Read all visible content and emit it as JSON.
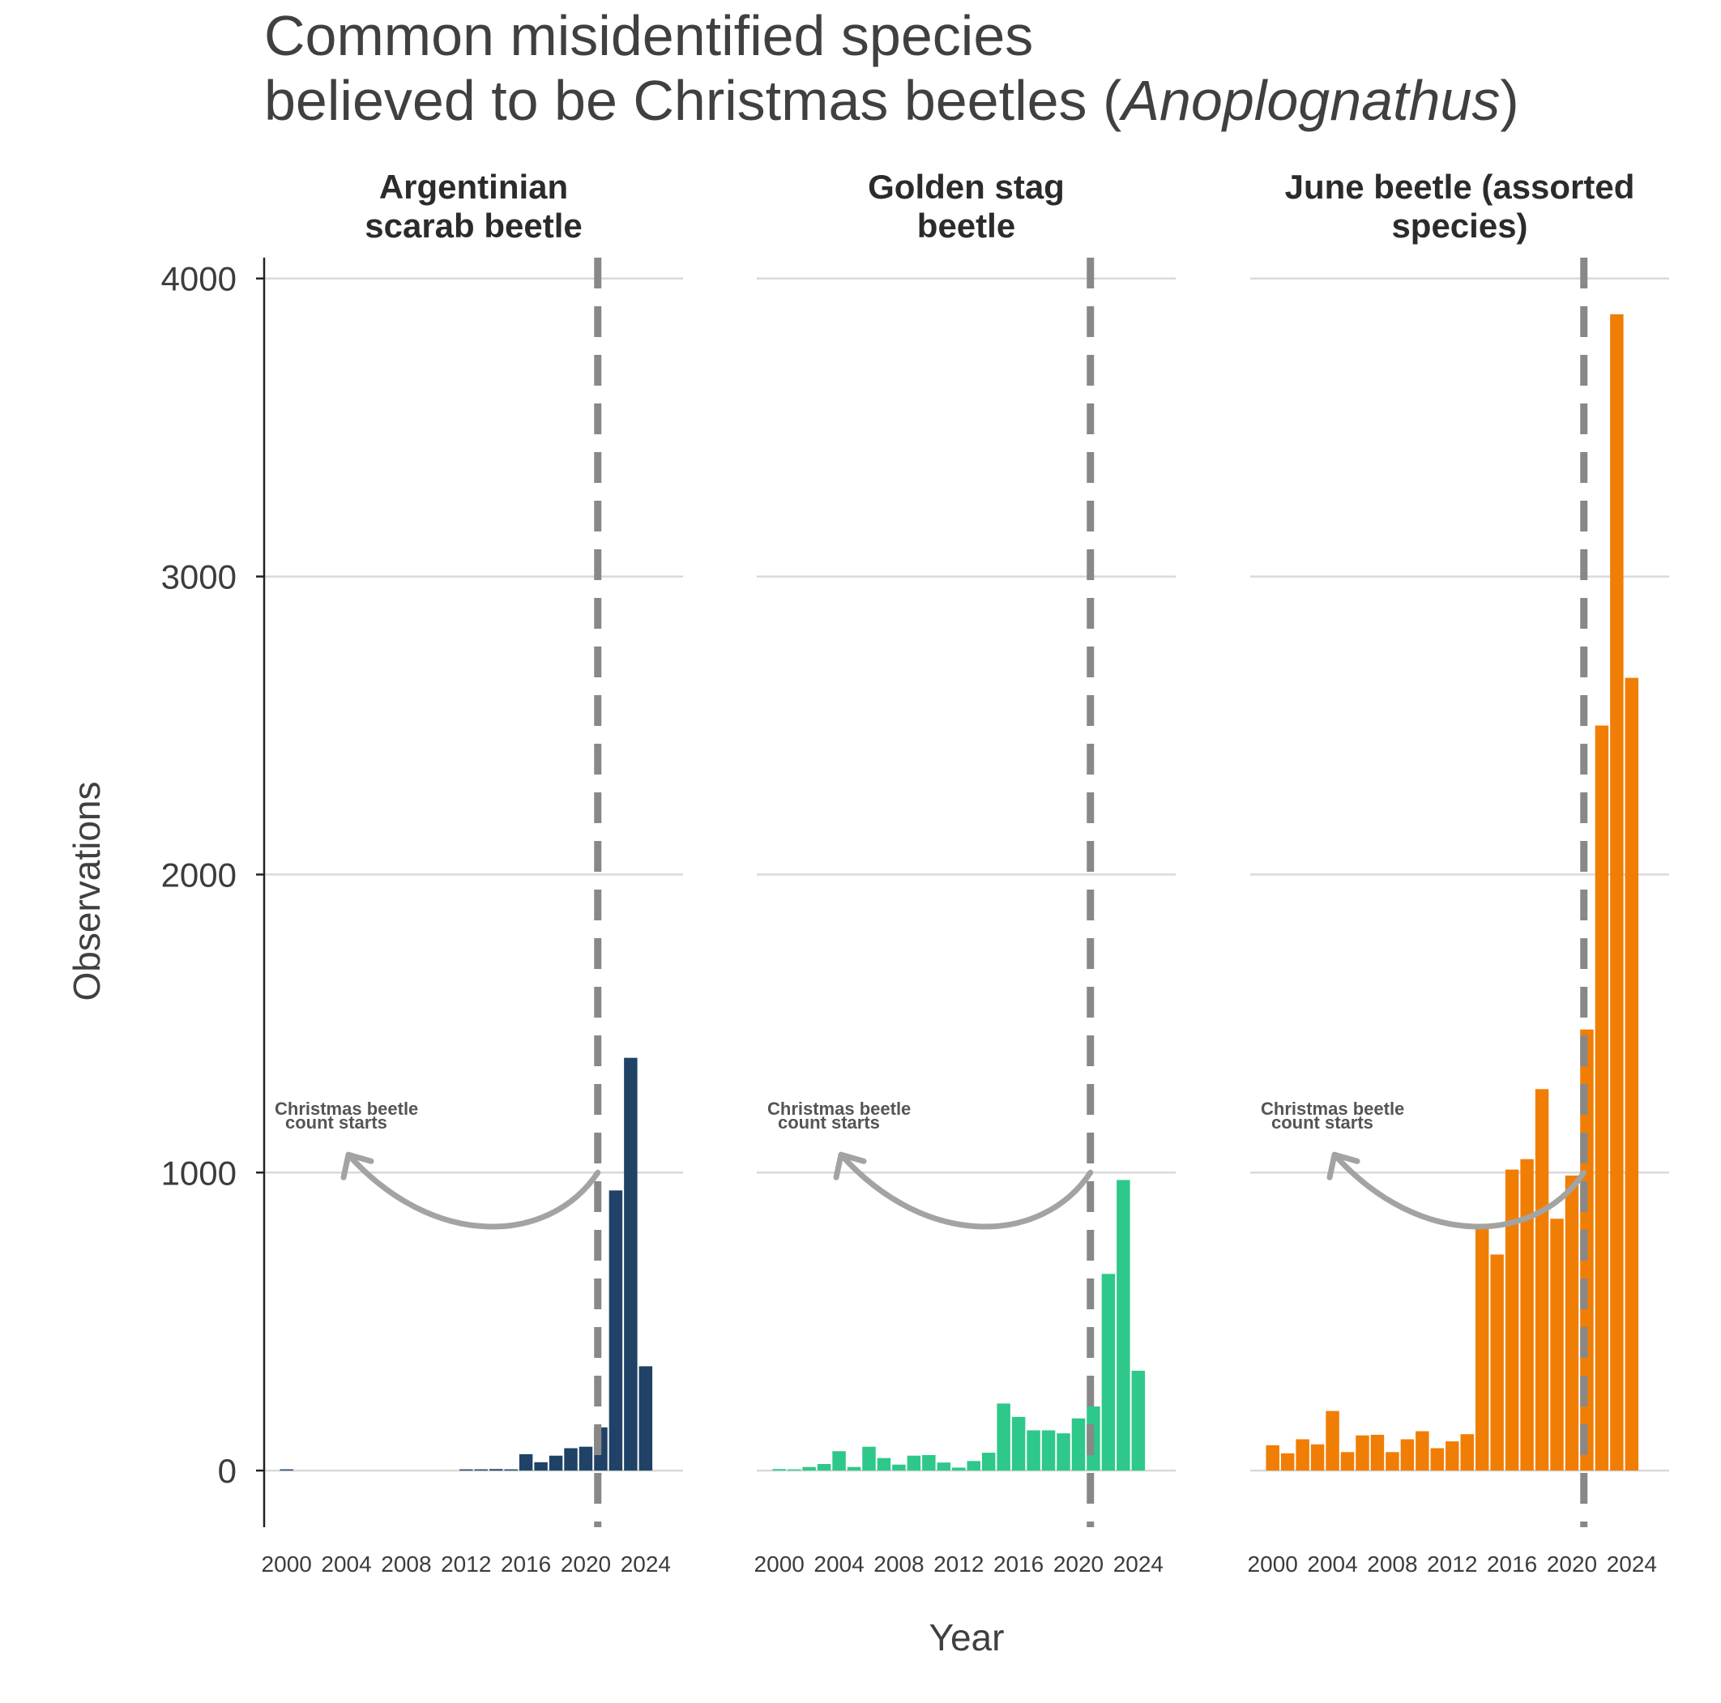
{
  "chart_data": {
    "type": "bar",
    "title_line1": "Common misidentified species",
    "title_line2_pre": "believed to be Christmas beetles (",
    "title_line2_italic": "Anoplognathus",
    "title_line2_post": ")",
    "xlabel": "Year",
    "ylabel": "Observations",
    "ylim": [
      -190,
      4070
    ],
    "xlim": [
      1998.5,
      2026.5
    ],
    "yticks": [
      0,
      1000,
      2000,
      3000,
      4000
    ],
    "xticks": [
      2000,
      2004,
      2008,
      2012,
      2016,
      2020,
      2024
    ],
    "reference_line_year": 2020.8,
    "annotation_line1": "Christmas beetle",
    "annotation_line2": "count starts",
    "panels": [
      {
        "name_line1": "Argentinian",
        "name_line2": "scarab beetle",
        "color": "#1f4266",
        "years": [
          2000,
          2001,
          2002,
          2003,
          2004,
          2005,
          2006,
          2007,
          2008,
          2009,
          2010,
          2011,
          2012,
          2013,
          2014,
          2015,
          2016,
          2017,
          2018,
          2019,
          2020,
          2021,
          2022,
          2023,
          2024
        ],
        "values": [
          3,
          0,
          0,
          0,
          0,
          0,
          0,
          0,
          0,
          0,
          0,
          0,
          3,
          4,
          5,
          4,
          55,
          28,
          50,
          75,
          80,
          145,
          940,
          1385,
          350
        ]
      },
      {
        "name_line1": "Golden stag",
        "name_line2": "beetle",
        "color": "#2ec88a",
        "years": [
          2000,
          2001,
          2002,
          2003,
          2004,
          2005,
          2006,
          2007,
          2008,
          2009,
          2010,
          2011,
          2012,
          2013,
          2014,
          2015,
          2016,
          2017,
          2018,
          2019,
          2020,
          2021,
          2022,
          2023,
          2024
        ],
        "values": [
          5,
          3,
          12,
          22,
          65,
          12,
          80,
          42,
          20,
          50,
          52,
          27,
          10,
          32,
          60,
          225,
          180,
          135,
          135,
          125,
          175,
          215,
          660,
          975,
          335
        ]
      },
      {
        "name_line1": "June beetle (assorted",
        "name_line2": "species)",
        "color": "#f07e05",
        "years": [
          2000,
          2001,
          2002,
          2003,
          2004,
          2005,
          2006,
          2007,
          2008,
          2009,
          2010,
          2011,
          2012,
          2013,
          2014,
          2015,
          2016,
          2017,
          2018,
          2019,
          2020,
          2021,
          2022,
          2023,
          2024
        ],
        "values": [
          85,
          58,
          105,
          88,
          200,
          62,
          118,
          120,
          62,
          105,
          132,
          75,
          98,
          122,
          820,
          725,
          1010,
          1045,
          1280,
          845,
          990,
          1480,
          2500,
          3880,
          2660
        ]
      }
    ]
  }
}
